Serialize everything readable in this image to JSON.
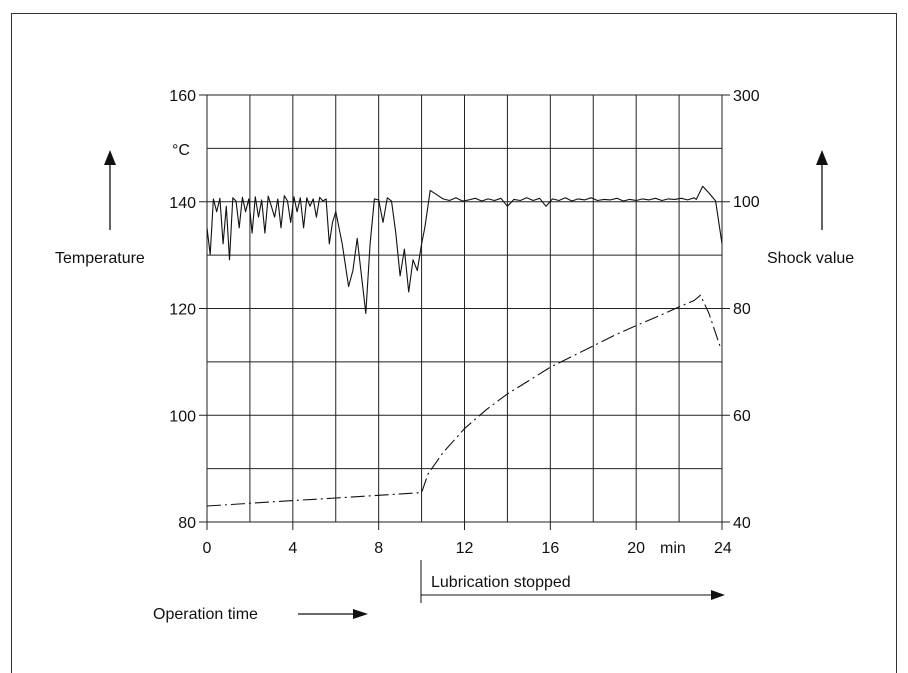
{
  "chart_data": {
    "type": "line",
    "xlabel": "Operation time",
    "x_unit": "min",
    "xlim": [
      0,
      24
    ],
    "x_ticks": [
      0,
      4,
      8,
      12,
      16,
      20,
      24
    ],
    "x_tick_labels": [
      "0",
      "4",
      "8",
      "12",
      "16",
      "20",
      "24"
    ],
    "ylabel_left": "Temperature",
    "y_unit_left": "°C",
    "ylim_left": [
      80,
      160
    ],
    "y_ticks_left": [
      80,
      100,
      120,
      140,
      160
    ],
    "y_tick_labels_left": [
      "80",
      "100",
      "120",
      "140",
      "160"
    ],
    "ylabel_right": "Shock value",
    "ylim_right": [
      40,
      300
    ],
    "y_ticks_right": [
      40,
      60,
      80,
      100,
      300
    ],
    "y_tick_labels_right": [
      "40",
      "60",
      "80",
      "100",
      "300"
    ],
    "grid": true,
    "annotation": {
      "text": "Lubrication stopped",
      "x_start": 10,
      "x_end": 24
    },
    "series": [
      {
        "axis": "right",
        "style": "solid",
        "x": [
          0,
          0.15,
          0.3,
          0.45,
          0.6,
          0.75,
          0.9,
          1.05,
          1.2,
          1.35,
          1.5,
          1.65,
          1.8,
          1.95,
          2.1,
          2.25,
          2.4,
          2.55,
          2.7,
          2.85,
          3.0,
          3.15,
          3.3,
          3.45,
          3.6,
          3.75,
          3.9,
          4.05,
          4.2,
          4.35,
          4.5,
          4.65,
          4.8,
          4.95,
          5.1,
          5.25,
          5.4,
          5.55,
          5.7,
          5.85,
          6.0,
          6.3,
          6.6,
          6.8,
          7.0,
          7.2,
          7.4,
          7.6,
          7.8,
          8.0,
          8.2,
          8.4,
          8.6,
          8.8,
          9.0,
          9.2,
          9.4,
          9.6,
          9.8,
          10.0,
          10.15,
          10.4,
          10.7,
          11.0,
          11.3,
          11.6,
          11.9,
          12.2,
          12.5,
          12.8,
          13.1,
          13.4,
          13.7,
          14.0,
          14.3,
          14.6,
          14.9,
          15.2,
          15.5,
          15.8,
          16.1,
          16.4,
          16.7,
          17.0,
          17.3,
          17.6,
          17.9,
          18.2,
          18.5,
          18.8,
          19.1,
          19.4,
          19.7,
          20.0,
          20.3,
          20.6,
          20.9,
          21.2,
          21.5,
          21.8,
          22.1,
          22.4,
          22.7,
          22.8,
          23.1,
          23.4,
          23.7,
          24.0
        ],
        "values": [
          95,
          90,
          104,
          98,
          105,
          92,
          99,
          89,
          106,
          100,
          95,
          107,
          98,
          104,
          94,
          108,
          97,
          102,
          94,
          109,
          99,
          97,
          104,
          95,
          110,
          100,
          96,
          108,
          98,
          106,
          95,
          106,
          99,
          104,
          97,
          107,
          100,
          104,
          92,
          96,
          98,
          92,
          84,
          87,
          93,
          86,
          79,
          92,
          104,
          102,
          96,
          106,
          100,
          94,
          86,
          91,
          83,
          89,
          87,
          92,
          95,
          120,
          112,
          104,
          101,
          106,
          100,
          102,
          105,
          100,
          104,
          101,
          105,
          99,
          103,
          101,
          106,
          101,
          105,
          99,
          104,
          101,
          106,
          100,
          104,
          102,
          106,
          101,
          103,
          102,
          105,
          100,
          103,
          101,
          104,
          102,
          105,
          101,
          104,
          103,
          105,
          102,
          106,
          103,
          128,
          115,
          100,
          92
        ]
      },
      {
        "axis": "left",
        "style": "dash-dot",
        "x": [
          0,
          2,
          4,
          6,
          8,
          10,
          10.3,
          11,
          12,
          13,
          14,
          15,
          16,
          17,
          18,
          19,
          20,
          21,
          22,
          22.7,
          23.0,
          23.4,
          23.9
        ],
        "values": [
          83,
          83.5,
          84,
          84.5,
          85,
          85.5,
          89,
          93,
          97.5,
          101,
          104,
          106.5,
          109,
          111,
          113,
          115,
          116.8,
          118.5,
          120.3,
          121.5,
          122.5,
          119,
          113
        ]
      }
    ]
  }
}
